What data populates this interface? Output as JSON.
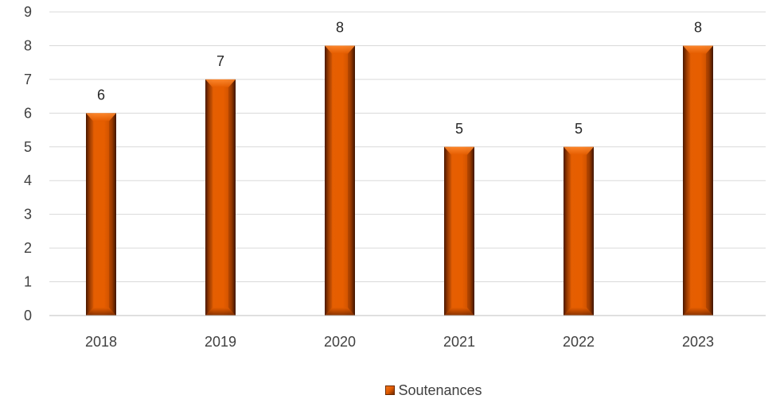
{
  "chart_data": {
    "type": "bar",
    "categories": [
      "2018",
      "2019",
      "2020",
      "2021",
      "2022",
      "2023"
    ],
    "series": [
      {
        "name": "Soutenances",
        "values": [
          6,
          7,
          8,
          5,
          5,
          8
        ]
      }
    ],
    "title": "",
    "xlabel": "",
    "ylabel": "",
    "ylim": [
      0,
      9
    ],
    "yticks": [
      "0",
      "1",
      "2",
      "3",
      "4",
      "5",
      "6",
      "7",
      "8",
      "9"
    ],
    "data_labels": true,
    "grid": true,
    "legend": "bottom",
    "bar_color": "#e05a00",
    "bar_edge_color": "#6b2a00",
    "grid_color": "#d9d9d9",
    "axis_color": "#bfbfbf"
  },
  "legend": {
    "label": "Soutenances"
  }
}
